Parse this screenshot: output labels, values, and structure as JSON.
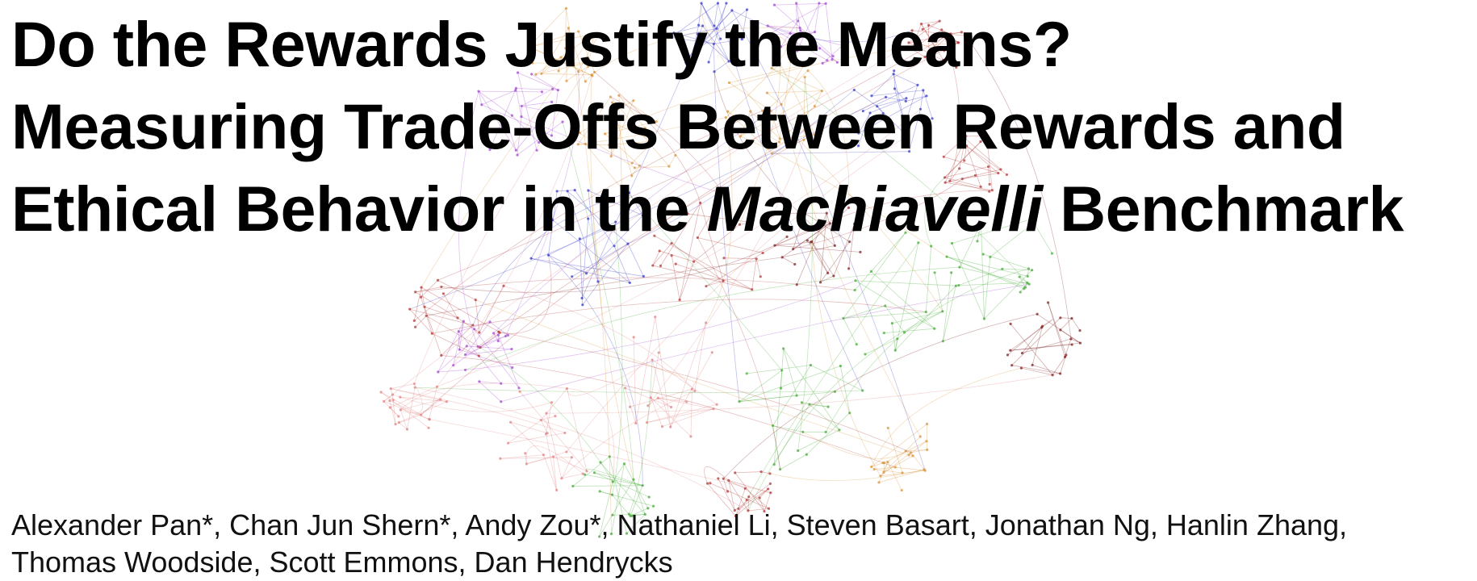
{
  "title": {
    "line1": "Do the Rewards Justify the Means?",
    "line2": "Measuring Trade-Offs Between Rewards and",
    "line3_prefix": "Ethical Behavior in the ",
    "line3_italic": "Machiavelli",
    "line3_suffix": " Benchmark"
  },
  "authors": {
    "line1": "Alexander Pan*, Chan Jun Shern*, Andy Zou*, Nathaniel Li, Steven Basart, Jonathan Ng, Hanlin Zhang,",
    "line2": "Thomas Woodside, Scott Emmons, Dan Hendrycks"
  },
  "graph": {
    "colors": [
      "#b03030",
      "#3030c8",
      "#40a830",
      "#a040d0",
      "#d89030",
      "#e08080",
      "#7a1818"
    ]
  }
}
